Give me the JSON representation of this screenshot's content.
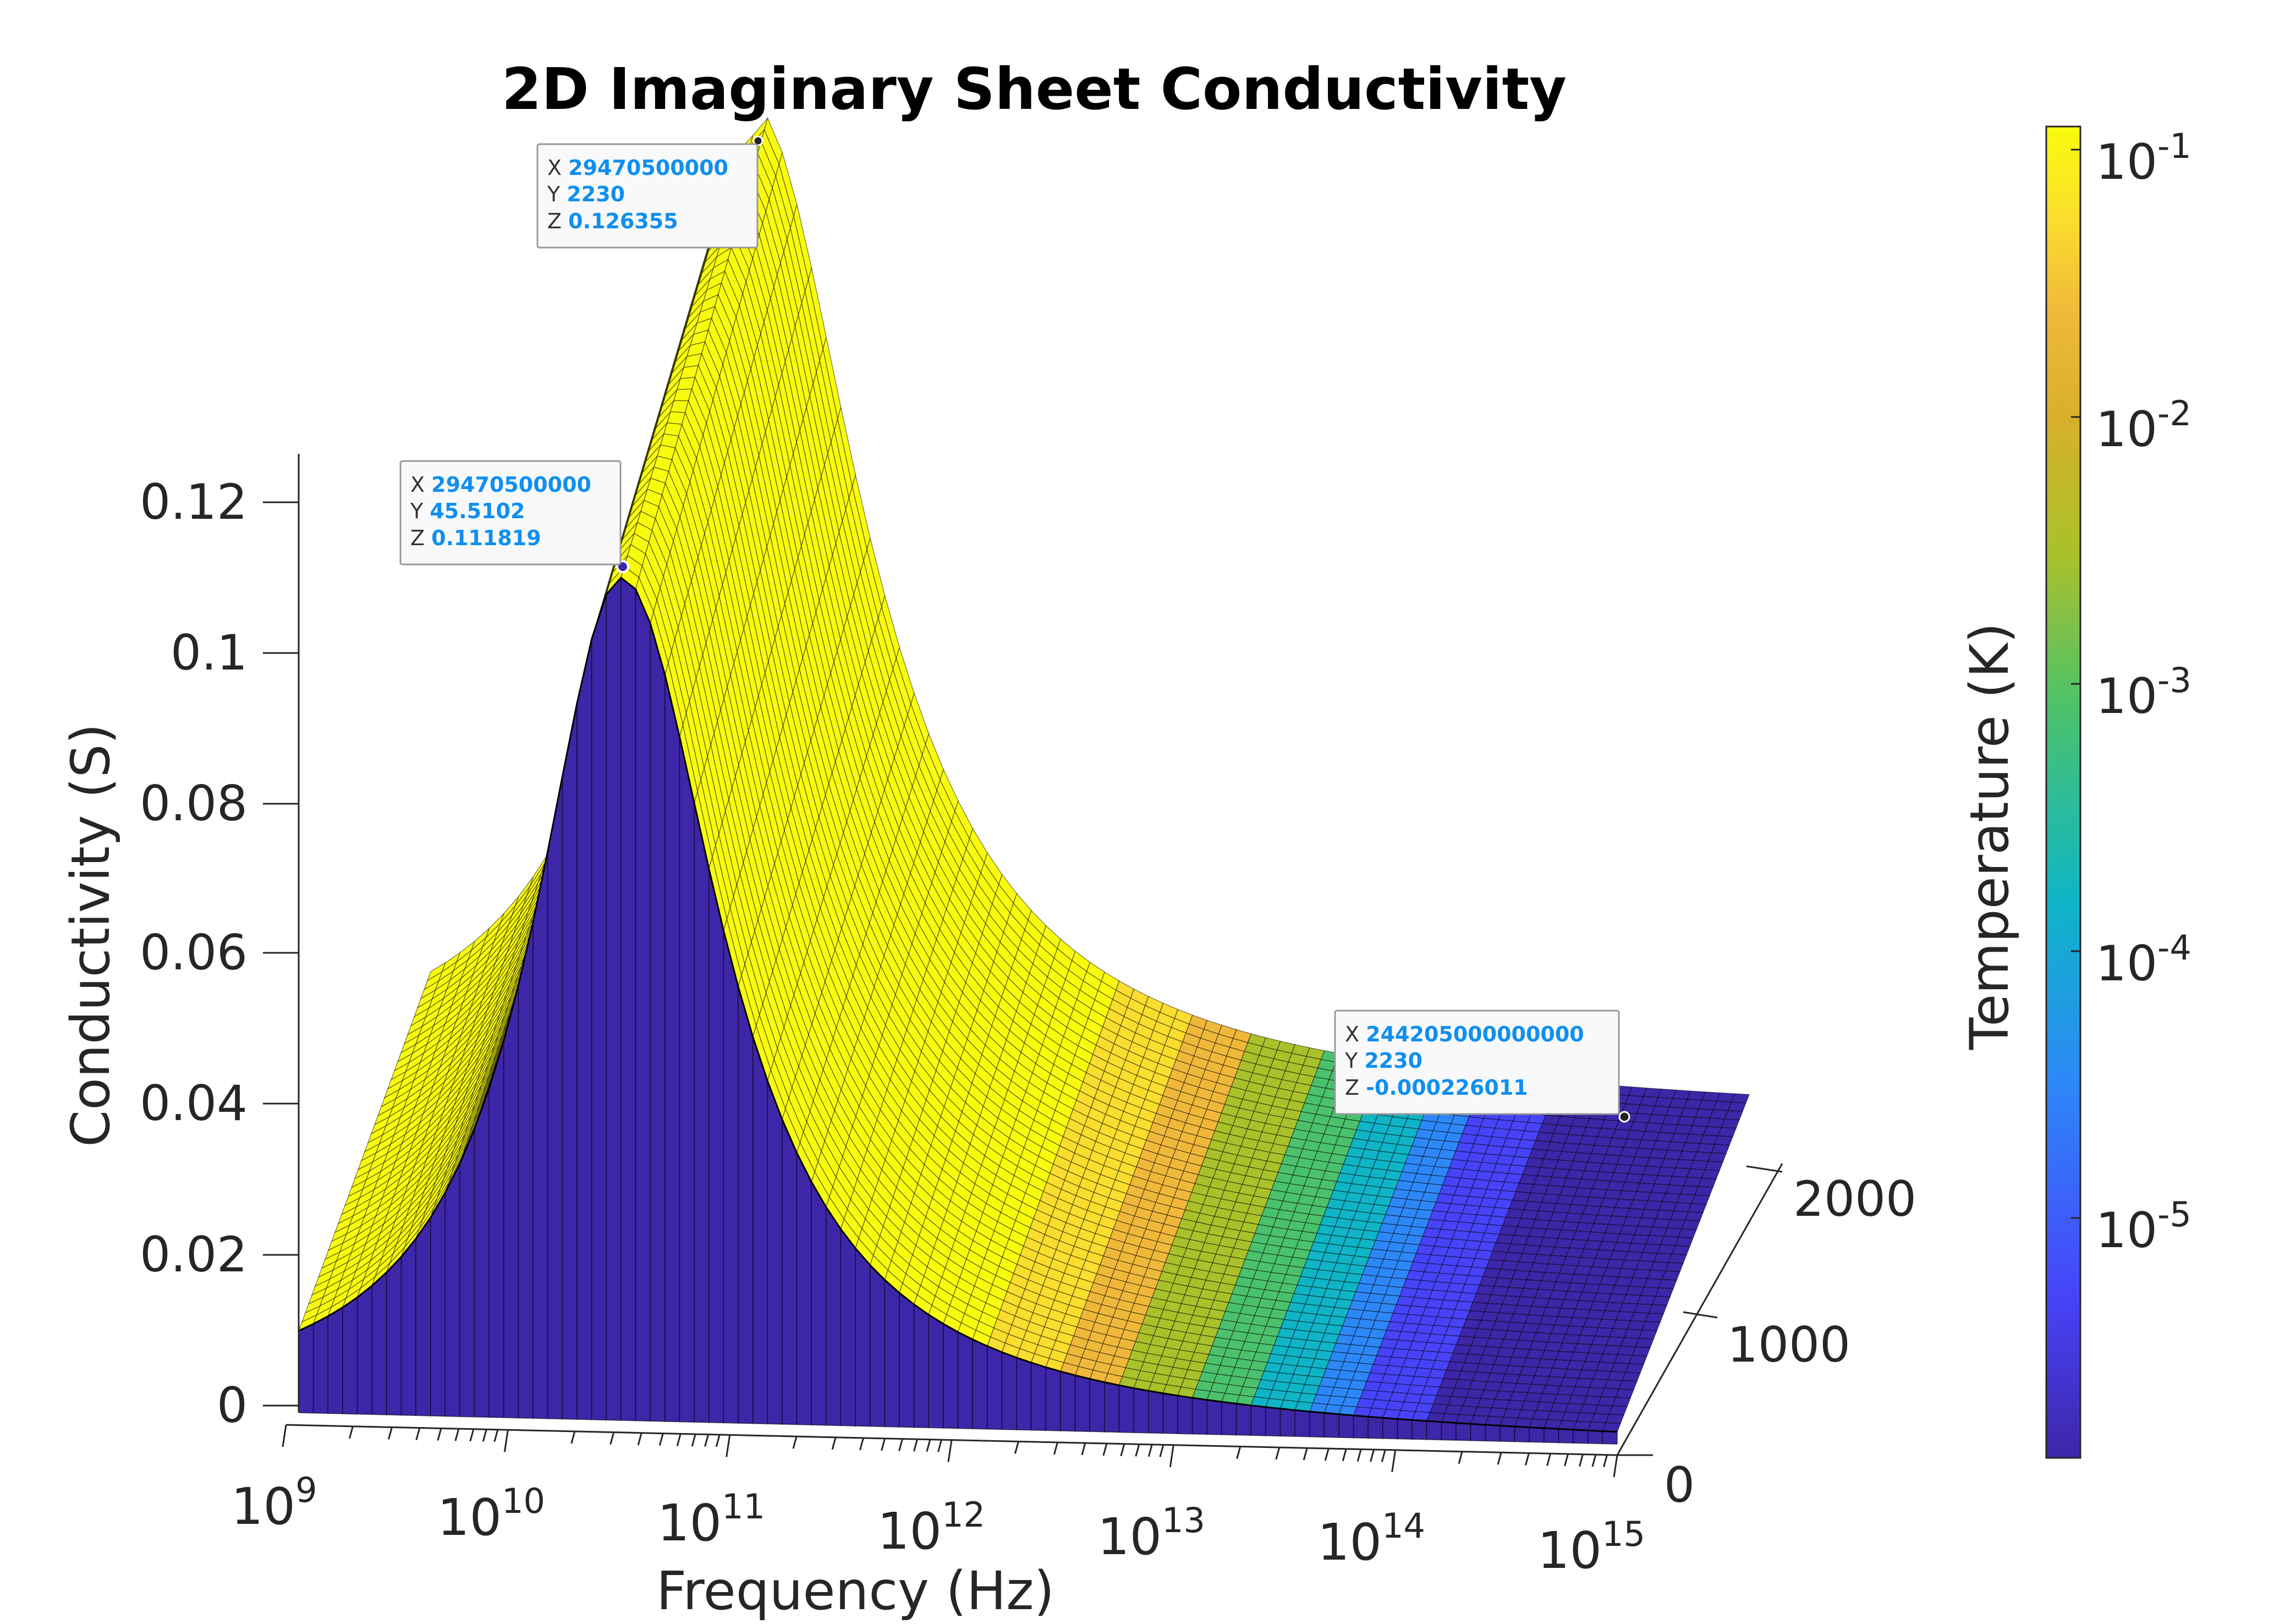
{
  "chart_data": {
    "type": "surface",
    "title": "2D Imaginary Sheet Conductivity",
    "xlabel": "Frequency (Hz)",
    "ylabel": "",
    "zlabel": "Conductivity (S)",
    "colorbar_label": "Temperature (K)",
    "x_scale": "log",
    "x_ticks": [
      {
        "base": "10",
        "exp": "9"
      },
      {
        "base": "10",
        "exp": "10"
      },
      {
        "base": "10",
        "exp": "11"
      },
      {
        "base": "10",
        "exp": "12"
      },
      {
        "base": "10",
        "exp": "13"
      },
      {
        "base": "10",
        "exp": "14"
      },
      {
        "base": "10",
        "exp": "15"
      }
    ],
    "y_ticks": [
      "0",
      "1000",
      "2000"
    ],
    "z_ticks": [
      "0",
      "0.02",
      "0.04",
      "0.06",
      "0.08",
      "0.1",
      "0.12"
    ],
    "colorbar_ticks": [
      {
        "base": "10",
        "exp": "-1"
      },
      {
        "base": "10",
        "exp": "-2"
      },
      {
        "base": "10",
        "exp": "-3"
      },
      {
        "base": "10",
        "exp": "-4"
      },
      {
        "base": "10",
        "exp": "-5"
      }
    ],
    "colormap": [
      "#3e26a8",
      "#4743f8",
      "#2e87f7",
      "#0fb5c6",
      "#4ac16d",
      "#a9c12a",
      "#f0b83a",
      "#fadd2e",
      "#f9fb0e"
    ],
    "temperature_range": [
      45.5102,
      2230
    ],
    "x_range": [
      1000000000,
      1000000000000000
    ],
    "z_range": [
      -0.000226011,
      0.126355
    ],
    "datatips": [
      {
        "x_label": "X",
        "x": "29470500000",
        "y_label": "Y",
        "y": "2230",
        "z_label": "Z",
        "z": "0.126355"
      },
      {
        "x_label": "X",
        "x": "29470500000",
        "y_label": "Y",
        "y": "45.5102",
        "z_label": "Z",
        "z": "0.111819"
      },
      {
        "x_label": "X",
        "x": "244205000000000",
        "y_label": "Y",
        "y": "2230",
        "z_label": "Z",
        "z": "-0.000226011"
      }
    ]
  }
}
